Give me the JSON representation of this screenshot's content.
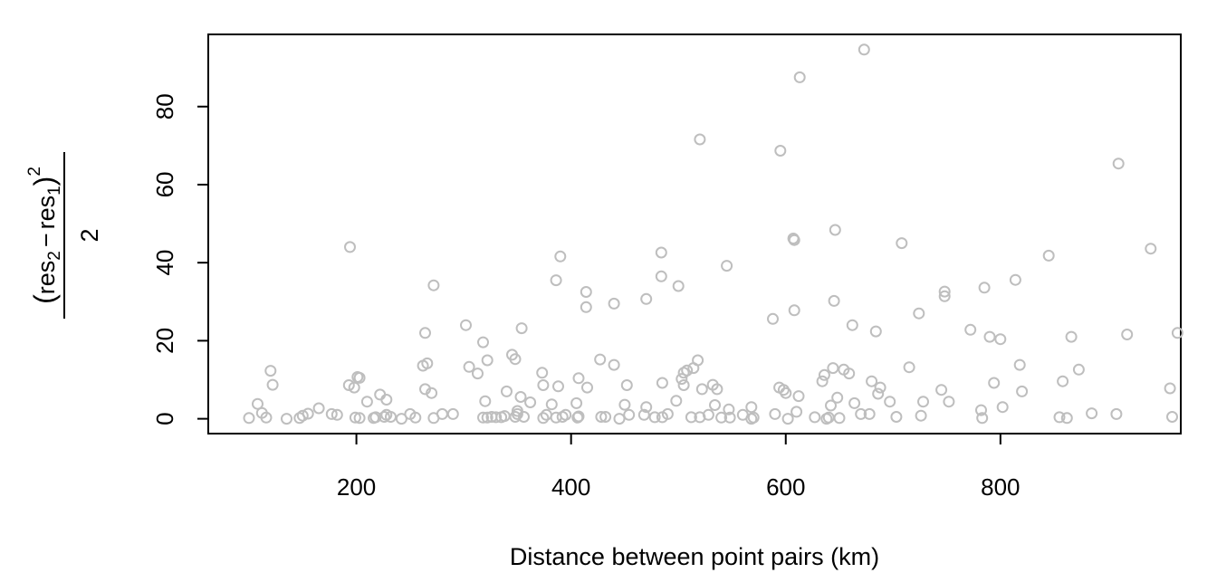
{
  "chart_data": {
    "type": "scatter",
    "xlabel": "Distance between point pairs (km)",
    "ylabel": {
      "open_paren": "(",
      "res": "res",
      "sub2": "2",
      "minus": "−",
      "sub1": "1",
      "close_paren": ")",
      "sup": "2",
      "denominator": "2"
    },
    "xlim": [
      62,
      968
    ],
    "ylim": [
      -3.8,
      98.5
    ],
    "x_ticks": [
      {
        "value": 200,
        "label": "200"
      },
      {
        "value": 400,
        "label": "400"
      },
      {
        "value": 600,
        "label": "600"
      },
      {
        "value": 800,
        "label": "800"
      }
    ],
    "y_ticks": [
      {
        "value": 0,
        "label": "0"
      },
      {
        "value": 20,
        "label": "20"
      },
      {
        "value": 40,
        "label": "40"
      },
      {
        "value": 60,
        "label": "60"
      },
      {
        "value": 80,
        "label": "80"
      }
    ],
    "marker_color": "#bebebe",
    "grid": false,
    "points": [
      [
        100,
        0.2
      ],
      [
        108,
        3.8
      ],
      [
        112,
        1.5
      ],
      [
        116,
        0.3
      ],
      [
        120,
        12.3
      ],
      [
        122,
        8.7
      ],
      [
        135,
        0
      ],
      [
        147,
        0.2
      ],
      [
        150,
        0.8
      ],
      [
        155,
        1.3
      ],
      [
        165,
        2.7
      ],
      [
        177,
        1.2
      ],
      [
        182,
        1.0
      ],
      [
        193,
        8.6
      ],
      [
        194,
        44
      ],
      [
        198,
        8.0
      ],
      [
        201,
        10.7
      ],
      [
        203,
        10.5
      ],
      [
        199,
        0.3
      ],
      [
        203,
        0.2
      ],
      [
        210,
        4.4
      ],
      [
        216,
        0.2
      ],
      [
        218,
        0.4
      ],
      [
        222,
        6.2
      ],
      [
        226,
        0.5
      ],
      [
        228,
        1.0
      ],
      [
        228,
        4.9
      ],
      [
        232,
        0.5
      ],
      [
        242,
        0
      ],
      [
        250,
        1.2
      ],
      [
        255,
        0.3
      ],
      [
        262,
        13.6
      ],
      [
        264,
        22.0
      ],
      [
        266,
        14.2
      ],
      [
        264,
        7.6
      ],
      [
        270,
        6.6
      ],
      [
        272,
        34.2
      ],
      [
        272,
        0.2
      ],
      [
        280,
        1.2
      ],
      [
        290,
        1.2
      ],
      [
        302,
        24.0
      ],
      [
        305,
        13.3
      ],
      [
        313,
        11.6
      ],
      [
        318,
        19.6
      ],
      [
        318,
        0.3
      ],
      [
        320,
        4.5
      ],
      [
        322,
        0.3
      ],
      [
        322,
        15.0
      ],
      [
        326,
        0.5
      ],
      [
        330,
        0.4
      ],
      [
        335,
        0.4
      ],
      [
        338,
        0.7
      ],
      [
        340,
        7.0
      ],
      [
        345,
        16.4
      ],
      [
        348,
        15.3
      ],
      [
        348,
        0.5
      ],
      [
        350,
        2.0
      ],
      [
        350,
        1.2
      ],
      [
        353,
        5.6
      ],
      [
        354,
        23.2
      ],
      [
        356,
        0.5
      ],
      [
        362,
        4.2
      ],
      [
        373,
        11.8
      ],
      [
        374,
        8.6
      ],
      [
        374,
        0.2
      ],
      [
        377,
        1.0
      ],
      [
        382,
        3.7
      ],
      [
        386,
        35.5
      ],
      [
        388,
        8.3
      ],
      [
        386,
        0.3
      ],
      [
        390,
        41.6
      ],
      [
        392,
        0.5
      ],
      [
        395,
        1.0
      ],
      [
        405,
        4.0
      ],
      [
        407,
        10.4
      ],
      [
        406,
        0.3
      ],
      [
        407,
        0.6
      ],
      [
        414,
        32.5
      ],
      [
        414,
        28.6
      ],
      [
        415,
        8.0
      ],
      [
        427,
        15.2
      ],
      [
        428,
        0.5
      ],
      [
        432,
        0.5
      ],
      [
        440,
        29.5
      ],
      [
        440,
        13.8
      ],
      [
        445,
        0
      ],
      [
        450,
        3.6
      ],
      [
        452,
        8.6
      ],
      [
        454,
        1.0
      ],
      [
        470,
        3.0
      ],
      [
        470,
        30.7
      ],
      [
        468,
        1.0
      ],
      [
        478,
        0.4
      ],
      [
        484,
        42.6
      ],
      [
        484,
        36.5
      ],
      [
        485,
        9.2
      ],
      [
        485,
        0.4
      ],
      [
        490,
        1.2
      ],
      [
        498,
        4.6
      ],
      [
        500,
        34
      ],
      [
        503,
        10.2
      ],
      [
        505,
        11.8
      ],
      [
        505,
        8.6
      ],
      [
        508,
        12.4
      ],
      [
        512,
        0.4
      ],
      [
        514,
        13.0
      ],
      [
        518,
        15.0
      ],
      [
        520,
        71.6
      ],
      [
        522,
        7.6
      ],
      [
        520,
        0.4
      ],
      [
        528,
        1.0
      ],
      [
        532,
        8.7
      ],
      [
        534,
        3.5
      ],
      [
        536,
        7.6
      ],
      [
        540,
        0.3
      ],
      [
        545,
        39.2
      ],
      [
        547,
        2.4
      ],
      [
        548,
        0.3
      ],
      [
        560,
        1.0
      ],
      [
        568,
        3.0
      ],
      [
        568,
        0
      ],
      [
        570,
        0.3
      ],
      [
        588,
        25.6
      ],
      [
        590,
        1.2
      ],
      [
        594,
        8.0
      ],
      [
        595,
        68.7
      ],
      [
        598,
        7.4
      ],
      [
        600,
        6.6
      ],
      [
        602,
        0
      ],
      [
        607,
        46.2
      ],
      [
        608,
        45.8
      ],
      [
        608,
        27.8
      ],
      [
        610,
        1.8
      ],
      [
        612,
        5.8
      ],
      [
        613,
        87.5
      ],
      [
        627,
        0.4
      ],
      [
        634,
        9.6
      ],
      [
        636,
        11.2
      ],
      [
        638,
        0
      ],
      [
        640,
        0.3
      ],
      [
        642,
        3.4
      ],
      [
        644,
        13.0
      ],
      [
        645,
        30.2
      ],
      [
        646,
        48.4
      ],
      [
        648,
        5.4
      ],
      [
        650,
        0.2
      ],
      [
        654,
        12.6
      ],
      [
        659,
        11.6
      ],
      [
        662,
        24.0
      ],
      [
        664,
        4.0
      ],
      [
        670,
        1.2
      ],
      [
        673,
        94.6
      ],
      [
        678,
        1.2
      ],
      [
        680,
        9.6
      ],
      [
        684,
        22.4
      ],
      [
        686,
        6.4
      ],
      [
        688,
        8.0
      ],
      [
        697,
        4.4
      ],
      [
        703,
        0.5
      ],
      [
        708,
        45
      ],
      [
        715,
        13.2
      ],
      [
        724,
        27.0
      ],
      [
        726,
        0.8
      ],
      [
        728,
        4.4
      ],
      [
        745,
        7.4
      ],
      [
        748,
        31.4
      ],
      [
        748,
        32.6
      ],
      [
        752,
        4.4
      ],
      [
        772,
        22.8
      ],
      [
        782,
        2.2
      ],
      [
        783,
        0.2
      ],
      [
        785,
        33.6
      ],
      [
        790,
        21.0
      ],
      [
        794,
        9.2
      ],
      [
        800,
        20.4
      ],
      [
        802,
        3.0
      ],
      [
        814,
        35.6
      ],
      [
        818,
        13.8
      ],
      [
        820,
        7.0
      ],
      [
        845,
        41.8
      ],
      [
        855,
        0.4
      ],
      [
        858,
        9.6
      ],
      [
        862,
        0.2
      ],
      [
        866,
        21.0
      ],
      [
        873,
        12.6
      ],
      [
        885,
        1.4
      ],
      [
        908,
        1.2
      ],
      [
        910,
        65.4
      ],
      [
        918,
        21.6
      ],
      [
        940,
        43.6
      ],
      [
        958,
        7.8
      ],
      [
        960,
        0.5
      ],
      [
        965,
        22.0
      ]
    ]
  }
}
